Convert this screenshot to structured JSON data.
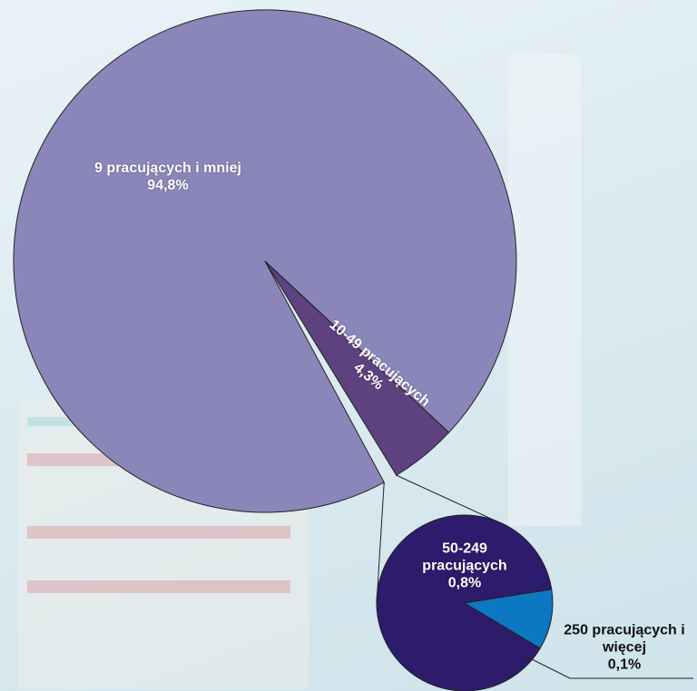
{
  "chart_data": {
    "type": "pie-of-pie",
    "categories": [
      "9 pracujących i mniej",
      "10-49 pracujących",
      "50-249 pracujących",
      "250 pracujących i więcej"
    ],
    "values": [
      94.8,
      4.3,
      0.8,
      0.1
    ],
    "value_labels": [
      "94,8%",
      "4,3%",
      "0,8%",
      "0,1%"
    ],
    "colors": [
      "#8b86b9",
      "#5e417f",
      "#2d1b6b",
      "#0b78c1"
    ],
    "secondary_count": 2
  }
}
